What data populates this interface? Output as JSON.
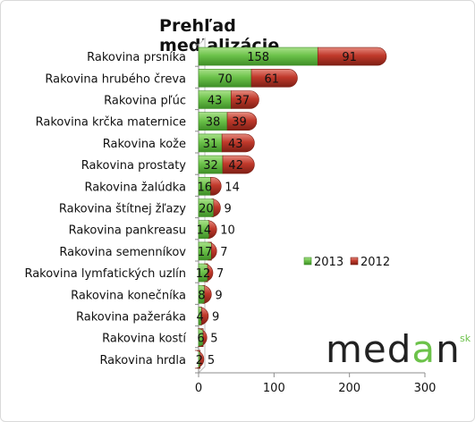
{
  "chart_data": {
    "type": "bar",
    "orientation": "horizontal",
    "stacked": true,
    "title": "Prehľad medializácie",
    "categories": [
      "Rakovina prsníka",
      "Rakovina hrubého čreva",
      "Rakovina pľúc",
      "Rakovina krčka maternice",
      "Rakovina kože",
      "Rakovina prostaty",
      "Rakovina žalúdka",
      "Rakovina štítnej žľazy",
      "Rakovina pankreasu",
      "Rakovina semenníkov",
      "Rakovina lymfatických uzlín",
      "Rakovina konečníka",
      "Rakovina pažeráka",
      "Rakovina kostí",
      "Rakovina hrdla"
    ],
    "series": [
      {
        "name": "2013",
        "color": "#6cc24a",
        "values": [
          158,
          70,
          43,
          38,
          31,
          32,
          16,
          20,
          14,
          17,
          12,
          8,
          4,
          6,
          2
        ]
      },
      {
        "name": "2012",
        "color": "#c0392b",
        "values": [
          91,
          61,
          37,
          39,
          43,
          42,
          14,
          9,
          10,
          7,
          7,
          9,
          9,
          5,
          5
        ]
      }
    ],
    "xlim": [
      0,
      300
    ],
    "xticks": [
      "0",
      "100",
      "200",
      "300"
    ],
    "legend_position": "right",
    "grid": false
  },
  "logo": {
    "main": "med",
    "accent": "a",
    "tail": "n",
    "suffix": "sk"
  }
}
